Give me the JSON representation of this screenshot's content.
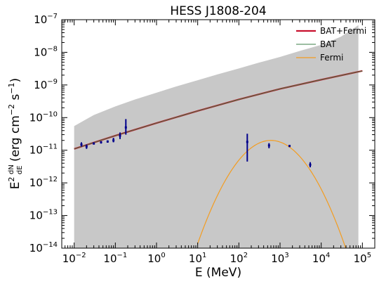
{
  "chart_data": {
    "type": "scatter",
    "title": "HESS J1808-204",
    "xlabel": "E (MeV)",
    "ylabel_base": "E",
    "ylabel_sup": "2",
    "ylabel_frac_num": "dN",
    "ylabel_frac_den": "dE",
    "ylabel_units": "(erg cm",
    "ylabel_units_sup": "−2",
    "ylabel_units_s": " s",
    "ylabel_units_sup2": "−1",
    "ylabel_units_close": ")",
    "x_scale": "log",
    "y_scale": "log",
    "xlim": [
      0.005,
      200000
    ],
    "ylim": [
      1e-14,
      1e-07
    ],
    "x_ticks": [
      {
        "exp": -2,
        "base": "10",
        "sup": "−2"
      },
      {
        "exp": -1,
        "base": "10",
        "sup": "−1"
      },
      {
        "exp": 0,
        "base": "10",
        "sup": "0"
      },
      {
        "exp": 1,
        "base": "10",
        "sup": "1"
      },
      {
        "exp": 2,
        "base": "10",
        "sup": "2"
      },
      {
        "exp": 3,
        "base": "10",
        "sup": "3"
      },
      {
        "exp": 4,
        "base": "10",
        "sup": "4"
      },
      {
        "exp": 5,
        "base": "10",
        "sup": "5"
      }
    ],
    "y_ticks": [
      {
        "exp": -14,
        "base": "10",
        "sup": "−14"
      },
      {
        "exp": -13,
        "base": "10",
        "sup": "−13"
      },
      {
        "exp": -12,
        "base": "10",
        "sup": "−12"
      },
      {
        "exp": -11,
        "base": "10",
        "sup": "−11"
      },
      {
        "exp": -10,
        "base": "10",
        "sup": "−10"
      },
      {
        "exp": -9,
        "base": "10",
        "sup": "−9"
      },
      {
        "exp": -8,
        "base": "10",
        "sup": "−8"
      },
      {
        "exp": -7,
        "base": "10",
        "sup": "−7"
      }
    ],
    "legend_position": "top-right",
    "band": {
      "color": "#c8c8c8",
      "x": [
        0.01,
        0.03,
        0.1,
        0.3,
        1,
        3,
        10,
        30,
        100,
        300,
        1000,
        3000,
        10000,
        30000,
        80000
      ],
      "upper": [
        5.5e-11,
        1.2e-10,
        2.2e-10,
        3.6e-10,
        5.8e-10,
        9e-10,
        1.4e-09,
        2.1e-09,
        3.2e-09,
        4.8e-09,
        7.2e-09,
        1.1e-08,
        1.7e-08,
        3e-08,
        6.8e-08
      ],
      "lower": [
        1e-14,
        1e-14,
        1e-14,
        1e-14,
        1e-14,
        1e-14,
        1e-14,
        1e-14,
        1e-14,
        1e-14,
        1e-14,
        1e-14,
        1e-14,
        1e-14,
        1e-14
      ]
    },
    "series": [
      {
        "name": "BAT+Fermi",
        "color": "#c8102e",
        "kind": "line",
        "x": [
          0.01,
          0.1,
          1,
          10,
          100,
          1000,
          10000,
          100000
        ],
        "y": [
          1.1e-11,
          2.8e-11,
          6.8e-11,
          1.6e-10,
          3.6e-10,
          7.6e-10,
          1.45e-09,
          2.7e-09
        ]
      },
      {
        "name": "BAT",
        "color": "#3a7d44",
        "kind": "line",
        "x": [
          0.01,
          0.1,
          1,
          10,
          100,
          1000,
          10000,
          100000
        ],
        "y": [
          1.1e-11,
          2.8e-11,
          6.8e-11,
          1.6e-10,
          3.6e-10,
          7.6e-10,
          1.45e-09,
          2.7e-09
        ]
      },
      {
        "name": "Fermi",
        "color": "#f39c20",
        "kind": "parabola",
        "peak_x": 600,
        "peak_y": 2e-11,
        "curvature": 1.0,
        "x_range": [
          10,
          40000
        ]
      }
    ],
    "points": [
      {
        "x": 0.015,
        "y": 1.5e-11,
        "ylo": 1.3e-11,
        "yhi": 1.75e-11
      },
      {
        "x": 0.02,
        "y": 1.3e-11,
        "ylo": 1.1e-11,
        "yhi": 1.5e-11
      },
      {
        "x": 0.03,
        "y": 1.6e-11,
        "ylo": 1.5e-11,
        "yhi": 1.75e-11
      },
      {
        "x": 0.045,
        "y": 1.75e-11,
        "ylo": 1.6e-11,
        "yhi": 1.9e-11
      },
      {
        "x": 0.065,
        "y": 1.85e-11,
        "ylo": 1.7e-11,
        "yhi": 2e-11
      },
      {
        "x": 0.09,
        "y": 2e-11,
        "ylo": 1.75e-11,
        "yhi": 2.4e-11
      },
      {
        "x": 0.13,
        "y": 2.8e-11,
        "ylo": 2.2e-11,
        "yhi": 3.5e-11
      },
      {
        "x": 0.18,
        "y": 5e-11,
        "ylo": 3e-11,
        "yhi": 9e-11
      },
      {
        "x": 160,
        "y": 1.8e-11,
        "ylo": 4.5e-12,
        "yhi": 3.2e-11
      },
      {
        "x": 540,
        "y": 1.4e-11,
        "ylo": 1.15e-11,
        "yhi": 1.65e-11
      },
      {
        "x": 1700,
        "y": 1.35e-11,
        "ylo": 1.25e-11,
        "yhi": 1.45e-11
      },
      {
        "x": 5400,
        "y": 3.6e-12,
        "ylo": 3e-12,
        "yhi": 4.3e-12
      }
    ],
    "point_color": "#00008b"
  }
}
